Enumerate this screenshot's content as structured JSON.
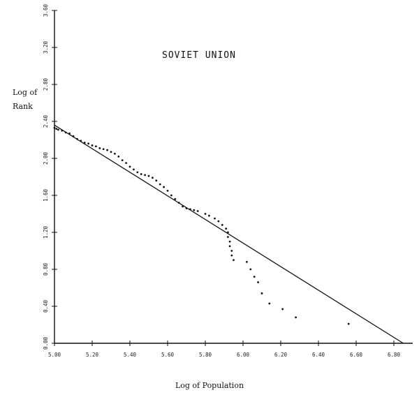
{
  "chart_data": {
    "type": "scatter",
    "title": "SOVIET UNION",
    "xlabel": "Log of Population",
    "ylabel": [
      "Log of",
      "Rank"
    ],
    "xlim": [
      5.0,
      6.9
    ],
    "ylim": [
      0.0,
      3.6
    ],
    "x_ticks": [
      "5.00",
      "5.20",
      "5.40",
      "5.60",
      "5.80",
      "6.00",
      "6.20",
      "6.40",
      "6.60",
      "6.80"
    ],
    "y_ticks": [
      "0.00",
      "0.40",
      "0.80",
      "1.20",
      "1.60",
      "2.00",
      "2.40",
      "2.80",
      "3.20",
      "3.60"
    ],
    "fit_line": {
      "x": [
        5.0,
        6.85
      ],
      "y": [
        2.36,
        0.0
      ]
    },
    "series": [
      {
        "points": [
          [
            5.0,
            2.33
          ],
          [
            5.01,
            2.32
          ],
          [
            5.02,
            2.31
          ],
          [
            5.04,
            2.3
          ],
          [
            5.06,
            2.28
          ],
          [
            5.08,
            2.27
          ],
          [
            5.1,
            2.24
          ],
          [
            5.12,
            2.21
          ],
          [
            5.14,
            2.19
          ],
          [
            5.16,
            2.17
          ],
          [
            5.18,
            2.16
          ],
          [
            5.2,
            2.14
          ],
          [
            5.22,
            2.13
          ],
          [
            5.24,
            2.11
          ],
          [
            5.26,
            2.1
          ],
          [
            5.28,
            2.09
          ],
          [
            5.3,
            2.07
          ],
          [
            5.32,
            2.05
          ],
          [
            5.34,
            2.02
          ],
          [
            5.36,
            1.98
          ],
          [
            5.38,
            1.95
          ],
          [
            5.4,
            1.91
          ],
          [
            5.42,
            1.88
          ],
          [
            5.44,
            1.85
          ],
          [
            5.46,
            1.83
          ],
          [
            5.48,
            1.82
          ],
          [
            5.5,
            1.81
          ],
          [
            5.52,
            1.79
          ],
          [
            5.54,
            1.76
          ],
          [
            5.56,
            1.72
          ],
          [
            5.58,
            1.69
          ],
          [
            5.6,
            1.65
          ],
          [
            5.62,
            1.6
          ],
          [
            5.64,
            1.56
          ],
          [
            5.66,
            1.52
          ],
          [
            5.68,
            1.48
          ],
          [
            5.7,
            1.46
          ],
          [
            5.72,
            1.45
          ],
          [
            5.74,
            1.44
          ],
          [
            5.76,
            1.43
          ],
          [
            5.8,
            1.4
          ],
          [
            5.82,
            1.38
          ],
          [
            5.85,
            1.35
          ],
          [
            5.87,
            1.32
          ],
          [
            5.89,
            1.28
          ],
          [
            5.91,
            1.24
          ],
          [
            5.92,
            1.2
          ],
          [
            5.92,
            1.15
          ],
          [
            5.93,
            1.1
          ],
          [
            5.93,
            1.05
          ],
          [
            5.94,
            1.0
          ],
          [
            5.94,
            0.95
          ],
          [
            5.95,
            0.9
          ],
          [
            6.02,
            0.88
          ],
          [
            6.04,
            0.8
          ],
          [
            6.06,
            0.72
          ],
          [
            6.08,
            0.66
          ],
          [
            6.1,
            0.54
          ],
          [
            6.14,
            0.43
          ],
          [
            6.21,
            0.37
          ],
          [
            6.28,
            0.28
          ],
          [
            6.56,
            0.21
          ]
        ]
      }
    ]
  }
}
